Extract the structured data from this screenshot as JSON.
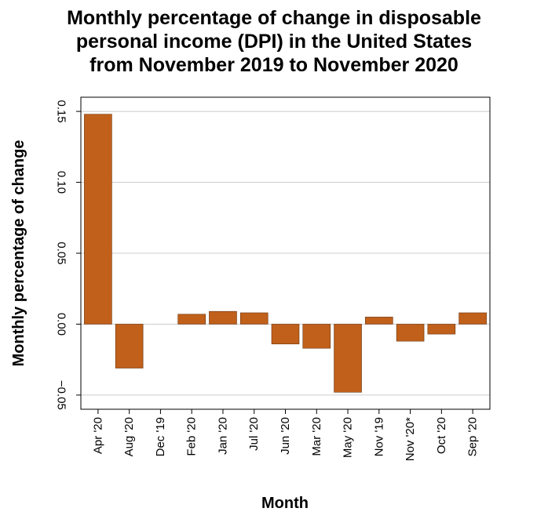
{
  "chart_data": {
    "type": "bar",
    "title_lines": [
      "Monthly percentage of change in disposable",
      "personal income (DPI) in the United States",
      "from November 2019 to November 2020"
    ],
    "xlabel": "Month",
    "ylabel": "Monthly percentage of change",
    "categories": [
      "Apr '20",
      "Aug '20",
      "Dec '19",
      "Feb '20",
      "Jan '20",
      "Jul '20",
      "Jun '20",
      "Mar '20",
      "May '20",
      "Nov '19",
      "Nov '20*",
      "Oct '20",
      "Sep '20"
    ],
    "values": [
      0.148,
      -0.031,
      0.0,
      0.007,
      0.009,
      0.008,
      -0.014,
      -0.017,
      -0.048,
      0.005,
      -0.012,
      -0.007,
      0.008
    ],
    "ylim": [
      -0.06,
      0.16
    ],
    "yticks": [
      -0.05,
      0.0,
      0.05,
      0.1,
      0.15
    ],
    "ytick_labels": [
      "−0.05",
      "0.00",
      "0.05",
      "0.10",
      "0.15"
    ],
    "grid": true,
    "bar_color": "#c0601a",
    "grid_color": "#cccccc"
  }
}
